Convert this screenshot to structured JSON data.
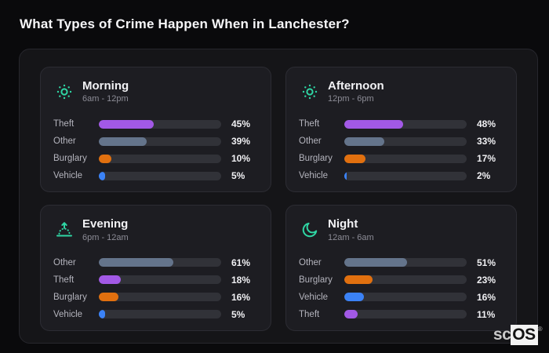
{
  "page": {
    "title": "What Types of Crime Happen When in Lanchester?",
    "background": "#0a0a0c",
    "container_background": "#151518",
    "panel_background": "#1d1d22",
    "track_color": "#313238",
    "accent_icon_color": "#2fd6a4"
  },
  "brand": {
    "prefix": "sc",
    "suffix": "OS",
    "registered_mark": "®"
  },
  "category_colors": {
    "Theft": "#a259e6",
    "Other": "#64748b",
    "Burglary": "#e1700f",
    "Vehicle": "#3b82f6"
  },
  "chart_data": [
    {
      "type": "bar",
      "orientation": "horizontal",
      "title": "Morning",
      "subtitle": "6am - 12pm",
      "icon": "sun-icon",
      "categories": [
        "Theft",
        "Other",
        "Burglary",
        "Vehicle"
      ],
      "values": [
        45,
        39,
        10,
        5
      ],
      "unit": "%",
      "xlim": [
        0,
        100
      ],
      "grid": false,
      "legend": false
    },
    {
      "type": "bar",
      "orientation": "horizontal",
      "title": "Afternoon",
      "subtitle": "12pm - 6pm",
      "icon": "sun-icon",
      "categories": [
        "Theft",
        "Other",
        "Burglary",
        "Vehicle"
      ],
      "values": [
        48,
        33,
        17,
        2
      ],
      "unit": "%",
      "xlim": [
        0,
        100
      ],
      "grid": false,
      "legend": false
    },
    {
      "type": "bar",
      "orientation": "horizontal",
      "title": "Evening",
      "subtitle": "6pm - 12am",
      "icon": "sunrise-icon",
      "categories": [
        "Other",
        "Theft",
        "Burglary",
        "Vehicle"
      ],
      "values": [
        61,
        18,
        16,
        5
      ],
      "unit": "%",
      "xlim": [
        0,
        100
      ],
      "grid": false,
      "legend": false
    },
    {
      "type": "bar",
      "orientation": "horizontal",
      "title": "Night",
      "subtitle": "12am - 6am",
      "icon": "moon-icon",
      "categories": [
        "Other",
        "Burglary",
        "Vehicle",
        "Theft"
      ],
      "values": [
        51,
        23,
        16,
        11
      ],
      "unit": "%",
      "xlim": [
        0,
        100
      ],
      "grid": false,
      "legend": false
    }
  ]
}
